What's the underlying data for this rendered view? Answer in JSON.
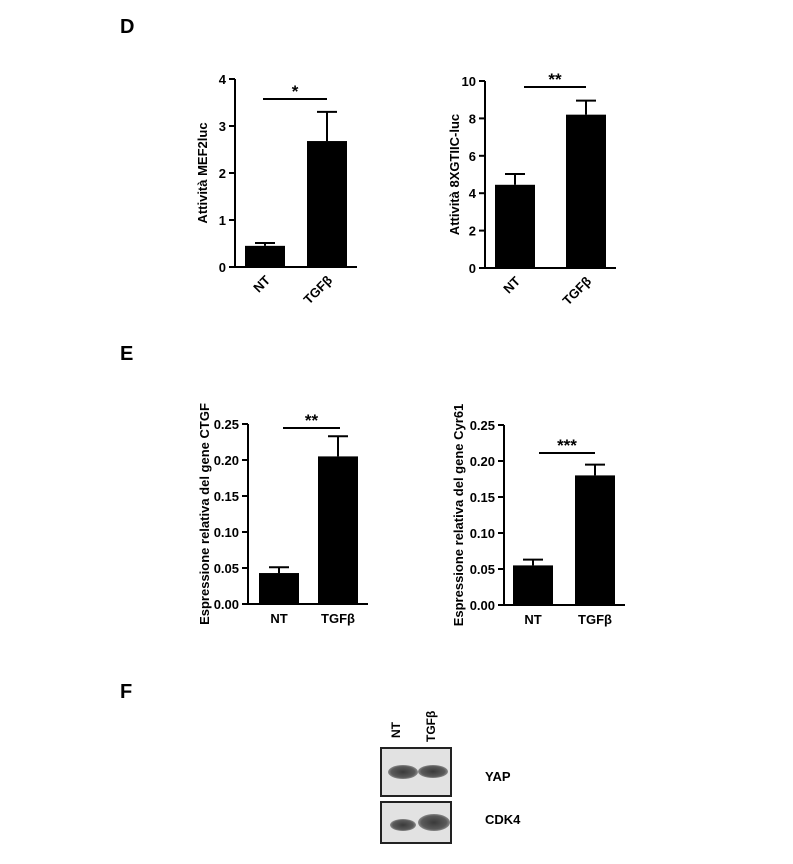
{
  "panels": {
    "D": {
      "letter": "D"
    },
    "E": {
      "letter": "E"
    },
    "F": {
      "letter": "F"
    }
  },
  "chart_data": [
    {
      "type": "bar",
      "title": "",
      "xlabel": "",
      "ylabel": "Attività MEF2luc",
      "categories": [
        "NT",
        "TGFβ"
      ],
      "values": [
        0.45,
        2.68
      ],
      "errors": [
        0.06,
        0.62
      ],
      "ylim": [
        0,
        4
      ],
      "yticks": [
        0,
        1,
        2,
        3,
        4
      ],
      "ytick_labels": [
        "0",
        "1",
        "2",
        "3",
        "4"
      ],
      "significance": "*"
    },
    {
      "type": "bar",
      "title": "",
      "xlabel": "",
      "ylabel": "Attività 8XGTIIC-luc",
      "categories": [
        "NT",
        "TGFβ"
      ],
      "values": [
        4.45,
        8.2
      ],
      "errors": [
        0.58,
        0.75
      ],
      "ylim": [
        0,
        10
      ],
      "yticks": [
        0,
        2,
        4,
        6,
        8,
        10
      ],
      "ytick_labels": [
        "0",
        "2",
        "4",
        "6",
        "8",
        "10"
      ],
      "significance": "**"
    },
    {
      "type": "bar",
      "title": "",
      "xlabel": "",
      "ylabel": "Espressione relativa del gene CTGF",
      "categories": [
        "NT",
        "TGFβ"
      ],
      "values": [
        0.043,
        0.205
      ],
      "errors": [
        0.008,
        0.028
      ],
      "ylim": [
        0,
        0.25
      ],
      "yticks": [
        0,
        0.05,
        0.1,
        0.15,
        0.2,
        0.25
      ],
      "ytick_labels": [
        "0.00",
        "0.05",
        "0.10",
        "0.15",
        "0.20",
        "0.25"
      ],
      "significance": "**"
    },
    {
      "type": "bar",
      "title": "",
      "xlabel": "",
      "ylabel": "Espressione relativa del gene Cyr61",
      "categories": [
        "NT",
        "TGFβ"
      ],
      "values": [
        0.055,
        0.18
      ],
      "errors": [
        0.008,
        0.015
      ],
      "ylim": [
        0,
        0.25
      ],
      "yticks": [
        0,
        0.05,
        0.1,
        0.15,
        0.2,
        0.25
      ],
      "ytick_labels": [
        "0.00",
        "0.05",
        "0.10",
        "0.15",
        "0.20",
        "0.25"
      ],
      "significance": "***"
    }
  ],
  "blot": {
    "lanes": [
      "NT",
      "TGFβ"
    ],
    "rows": [
      {
        "label": "YAP"
      },
      {
        "label": "CDK4"
      }
    ]
  }
}
